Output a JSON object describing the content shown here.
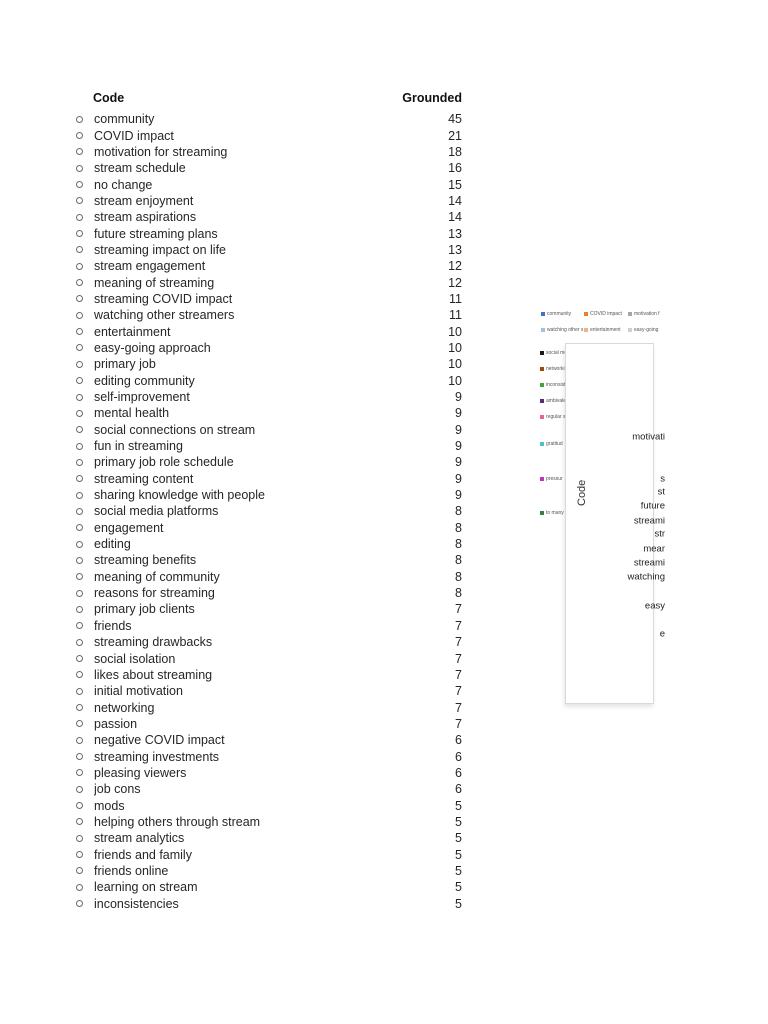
{
  "table": {
    "headers": {
      "code": "Code",
      "grounded": "Grounded"
    },
    "rows": [
      {
        "label": "community",
        "value": "45"
      },
      {
        "label": "COVID impact",
        "value": "21"
      },
      {
        "label": "motivation for streaming",
        "value": "18"
      },
      {
        "label": "stream schedule",
        "value": "16"
      },
      {
        "label": "no change",
        "value": "15"
      },
      {
        "label": "stream enjoyment",
        "value": "14"
      },
      {
        "label": "stream aspirations",
        "value": "14"
      },
      {
        "label": "future streaming plans",
        "value": "13"
      },
      {
        "label": "streaming impact on life",
        "value": "13"
      },
      {
        "label": "stream engagement",
        "value": "12"
      },
      {
        "label": "meaning of streaming",
        "value": "12"
      },
      {
        "label": "streaming COVID impact",
        "value": "11"
      },
      {
        "label": "watching other streamers",
        "value": "11"
      },
      {
        "label": "entertainment",
        "value": "10"
      },
      {
        "label": "easy-going approach",
        "value": "10"
      },
      {
        "label": "primary job",
        "value": "10"
      },
      {
        "label": "editing community",
        "value": "10"
      },
      {
        "label": "self-improvement",
        "value": "9"
      },
      {
        "label": "mental health",
        "value": "9"
      },
      {
        "label": "social connections on stream",
        "value": "9"
      },
      {
        "label": "fun in streaming",
        "value": "9"
      },
      {
        "label": "primary job role schedule",
        "value": "9"
      },
      {
        "label": "streaming content",
        "value": "9"
      },
      {
        "label": "sharing knowledge with people",
        "value": "9"
      },
      {
        "label": "social media platforms",
        "value": "8"
      },
      {
        "label": "engagement",
        "value": "8"
      },
      {
        "label": "editing",
        "value": "8"
      },
      {
        "label": "streaming benefits",
        "value": "8"
      },
      {
        "label": "meaning of community",
        "value": "8"
      },
      {
        "label": "reasons for streaming",
        "value": "8"
      },
      {
        "label": "primary job clients",
        "value": "7"
      },
      {
        "label": "friends",
        "value": "7"
      },
      {
        "label": "streaming drawbacks",
        "value": "7"
      },
      {
        "label": "social isolation",
        "value": "7"
      },
      {
        "label": "likes about streaming",
        "value": "7"
      },
      {
        "label": "initial motivation",
        "value": "7"
      },
      {
        "label": "networking",
        "value": "7"
      },
      {
        "label": "passion",
        "value": "7"
      },
      {
        "label": "negative COVID impact",
        "value": "6"
      },
      {
        "label": "streaming investments",
        "value": "6"
      },
      {
        "label": "pleasing viewers",
        "value": "6"
      },
      {
        "label": "job cons",
        "value": "6"
      },
      {
        "label": "mods",
        "value": "5"
      },
      {
        "label": "helping others through stream",
        "value": "5"
      },
      {
        "label": "stream analytics",
        "value": "5"
      },
      {
        "label": "friends and family",
        "value": "5"
      },
      {
        "label": "friends online",
        "value": "5"
      },
      {
        "label": "learning on stream",
        "value": "5"
      },
      {
        "label": "inconsistencies",
        "value": "5"
      }
    ]
  },
  "chart": {
    "type": "bar",
    "axis_label": "Code",
    "clipped": true,
    "legend_top": [
      {
        "label": "community",
        "color": "#4472C4"
      },
      {
        "label": "COVID impact",
        "color": "#ED7D31"
      },
      {
        "label": "motivation f",
        "color": "#A5A5A5"
      },
      {
        "label": "watching other streamers",
        "color": "#9DC3E6"
      },
      {
        "label": "entertainment",
        "color": "#F4B183"
      },
      {
        "label": "easy-going",
        "color": "#CFCFCF"
      }
    ],
    "legend_side": [
      {
        "label": "social me",
        "color": "#1A1A1A"
      },
      {
        "label": "networki",
        "color": "#9E480E"
      },
      {
        "label": "inconsist",
        "color": "#43A047"
      },
      {
        "label": "ambivale",
        "color": "#552D7E"
      },
      {
        "label": "regular s",
        "color": "#E8638C"
      },
      {
        "label": "gratitud",
        "color": "#49C2CE"
      },
      {
        "label": "pressur",
        "color": "#BD34BD"
      },
      {
        "label": "to many",
        "color": "#35803B"
      }
    ],
    "category_labels": [
      "motivati",
      "s",
      "st",
      "future",
      "streami",
      "str",
      "mear",
      "streami",
      "watching",
      "easy",
      "e"
    ]
  }
}
